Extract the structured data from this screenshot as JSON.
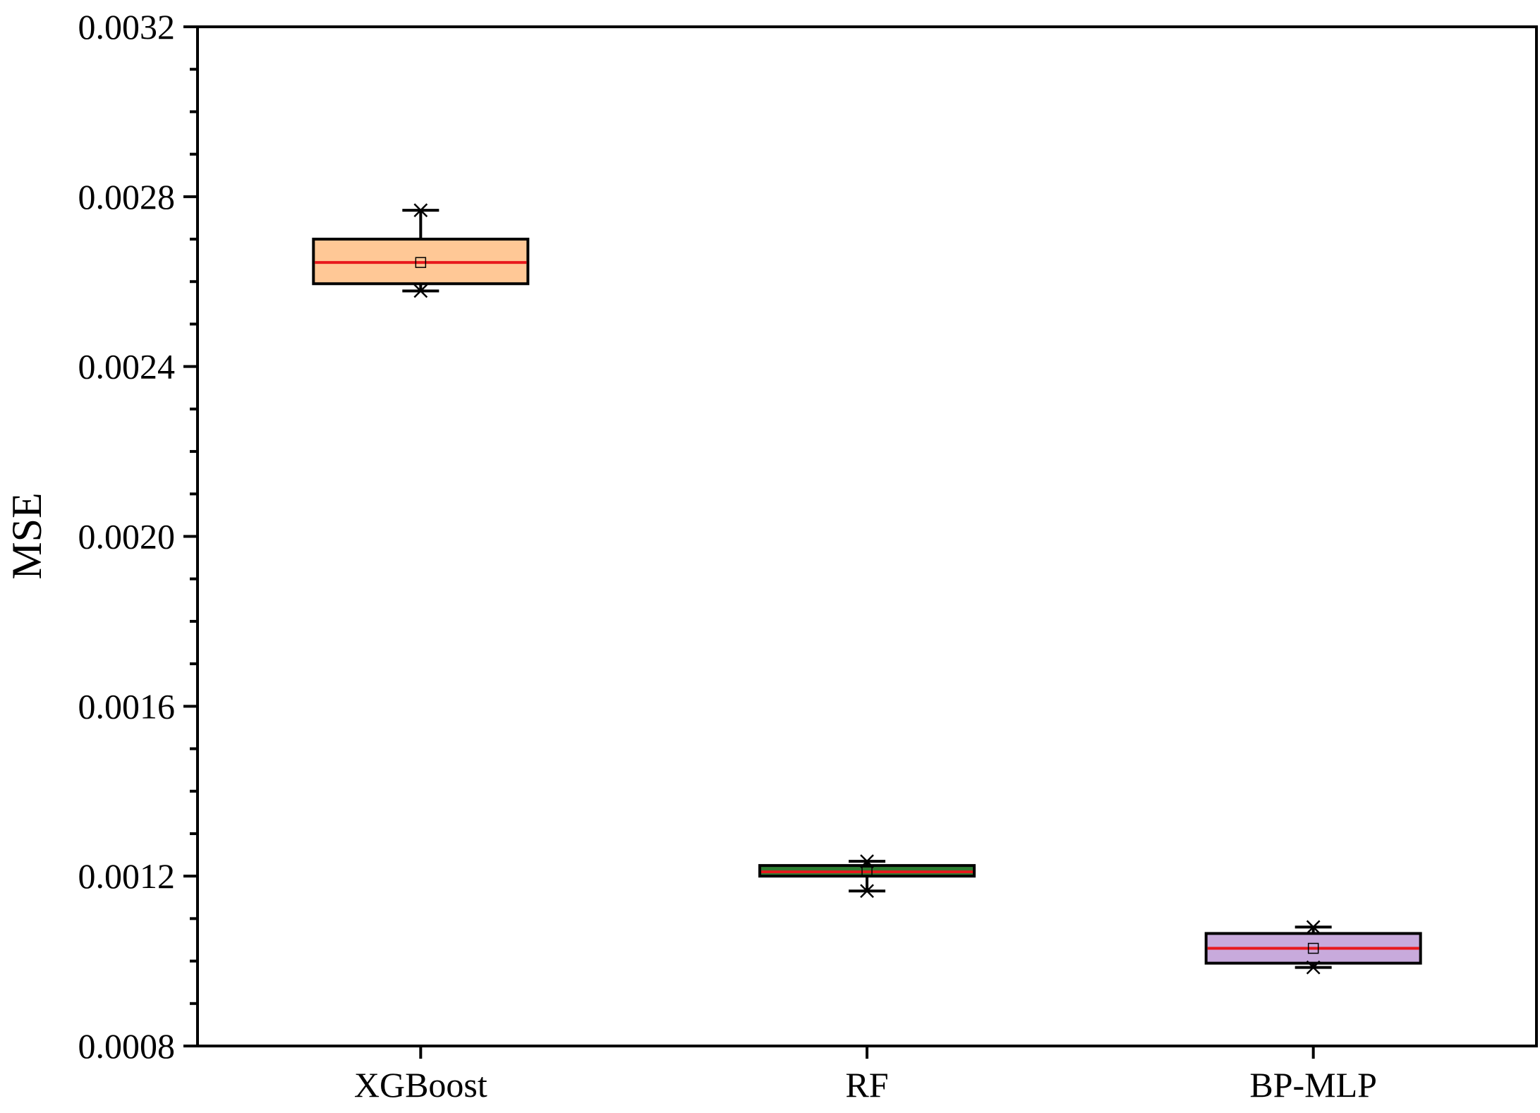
{
  "chart_data": {
    "type": "box",
    "ylabel": "MSE",
    "xlabel": "",
    "ylim": [
      0.0008,
      0.0032
    ],
    "yticks": [
      "0.0008",
      "0.0012",
      "0.0016",
      "0.0020",
      "0.0024",
      "0.0028",
      "0.0032"
    ],
    "categories": [
      "XGBoost",
      "RF",
      "BP-MLP"
    ],
    "boxes": [
      {
        "name": "XGBoost",
        "min": 0.002578,
        "q1": 0.002595,
        "median": 0.002645,
        "mean": 0.002645,
        "q3": 0.0027,
        "max": 0.002768,
        "fill": "#FFC896"
      },
      {
        "name": "RF",
        "min": 0.001165,
        "q1": 0.0012,
        "median": 0.00121,
        "mean": 0.00121,
        "q3": 0.001225,
        "max": 0.001235,
        "fill": "#2E7D32"
      },
      {
        "name": "BP-MLP",
        "min": 0.000985,
        "q1": 0.000995,
        "median": 0.00103,
        "mean": 0.00103,
        "q3": 0.001065,
        "max": 0.00108,
        "fill": "#C8AADC"
      }
    ],
    "median_color": "#E8181C",
    "grid": false,
    "legend": "none"
  }
}
